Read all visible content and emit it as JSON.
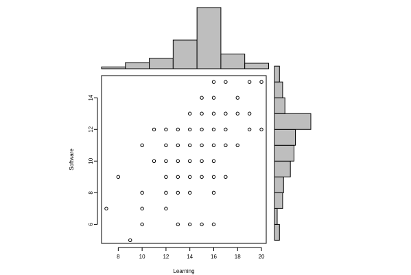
{
  "chart_data": [
    {
      "type": "scatter",
      "xlabel": "Learning",
      "ylabel": "Software",
      "xlim": [
        6.6,
        20.4
      ],
      "ylim": [
        4.8,
        15.4
      ],
      "x_ticks": [
        8,
        10,
        12,
        14,
        16,
        18,
        20
      ],
      "y_ticks": [
        6,
        8,
        10,
        12,
        14
      ],
      "x_tick_labels": [
        "8",
        "10",
        "12",
        "14",
        "16",
        "18",
        "20"
      ],
      "y_tick_labels": [
        "6",
        "8",
        "10",
        "12",
        "14"
      ],
      "marker": "open-circle",
      "points": [
        {
          "x": 16,
          "y": 15
        },
        {
          "x": 17,
          "y": 15
        },
        {
          "x": 19,
          "y": 15
        },
        {
          "x": 20,
          "y": 15
        },
        {
          "x": 15,
          "y": 14
        },
        {
          "x": 16,
          "y": 14
        },
        {
          "x": 18,
          "y": 14
        },
        {
          "x": 14,
          "y": 13
        },
        {
          "x": 15,
          "y": 13
        },
        {
          "x": 16,
          "y": 13
        },
        {
          "x": 17,
          "y": 13
        },
        {
          "x": 18,
          "y": 13
        },
        {
          "x": 19,
          "y": 13
        },
        {
          "x": 11,
          "y": 12
        },
        {
          "x": 12,
          "y": 12
        },
        {
          "x": 13,
          "y": 12
        },
        {
          "x": 14,
          "y": 12
        },
        {
          "x": 15,
          "y": 12
        },
        {
          "x": 16,
          "y": 12
        },
        {
          "x": 17,
          "y": 12
        },
        {
          "x": 19,
          "y": 12
        },
        {
          "x": 20,
          "y": 12
        },
        {
          "x": 10,
          "y": 11
        },
        {
          "x": 12,
          "y": 11
        },
        {
          "x": 13,
          "y": 11
        },
        {
          "x": 14,
          "y": 11
        },
        {
          "x": 15,
          "y": 11
        },
        {
          "x": 16,
          "y": 11
        },
        {
          "x": 17,
          "y": 11
        },
        {
          "x": 18,
          "y": 11
        },
        {
          "x": 11,
          "y": 10
        },
        {
          "x": 12,
          "y": 10
        },
        {
          "x": 13,
          "y": 10
        },
        {
          "x": 14,
          "y": 10
        },
        {
          "x": 15,
          "y": 10
        },
        {
          "x": 16,
          "y": 10
        },
        {
          "x": 8,
          "y": 9
        },
        {
          "x": 12,
          "y": 9
        },
        {
          "x": 13,
          "y": 9
        },
        {
          "x": 14,
          "y": 9
        },
        {
          "x": 15,
          "y": 9
        },
        {
          "x": 16,
          "y": 9
        },
        {
          "x": 17,
          "y": 9
        },
        {
          "x": 10,
          "y": 8
        },
        {
          "x": 12,
          "y": 8
        },
        {
          "x": 13,
          "y": 8
        },
        {
          "x": 14,
          "y": 8
        },
        {
          "x": 16,
          "y": 8
        },
        {
          "x": 7,
          "y": 7
        },
        {
          "x": 10,
          "y": 7
        },
        {
          "x": 12,
          "y": 7
        },
        {
          "x": 10,
          "y": 6
        },
        {
          "x": 13,
          "y": 6
        },
        {
          "x": 14,
          "y": 6
        },
        {
          "x": 15,
          "y": 6
        },
        {
          "x": 16,
          "y": 6
        },
        {
          "x": 9,
          "y": 5
        }
      ]
    },
    {
      "type": "bar",
      "orientation": "vertical",
      "variable": "Learning",
      "position": "top marginal histogram",
      "bins": [
        {
          "from": 6.6,
          "to": 8.6,
          "height": 0.3
        },
        {
          "from": 8.6,
          "to": 10.6,
          "height": 1.0
        },
        {
          "from": 10.6,
          "to": 12.6,
          "height": 1.7
        },
        {
          "from": 12.6,
          "to": 14.6,
          "height": 4.7
        },
        {
          "from": 14.6,
          "to": 16.6,
          "height": 10.0
        },
        {
          "from": 16.6,
          "to": 18.6,
          "height": 2.4
        },
        {
          "from": 18.6,
          "to": 20.6,
          "height": 0.9
        }
      ]
    },
    {
      "type": "bar",
      "orientation": "horizontal",
      "variable": "Software",
      "position": "right marginal histogram",
      "bins": [
        {
          "from": 5.0,
          "to": 6.0,
          "length": 1.1
        },
        {
          "from": 6.0,
          "to": 7.0,
          "length": 0.6
        },
        {
          "from": 7.0,
          "to": 8.0,
          "length": 1.8
        },
        {
          "from": 8.0,
          "to": 9.0,
          "length": 2.0
        },
        {
          "from": 9.0,
          "to": 10.0,
          "length": 3.5
        },
        {
          "from": 10.0,
          "to": 11.0,
          "length": 4.3
        },
        {
          "from": 11.0,
          "to": 12.0,
          "length": 4.6
        },
        {
          "from": 12.0,
          "to": 13.0,
          "length": 8.0
        },
        {
          "from": 13.0,
          "to": 14.0,
          "length": 2.3
        },
        {
          "from": 14.0,
          "to": 15.0,
          "length": 1.8
        },
        {
          "from": 15.0,
          "to": 16.0,
          "length": 1.1
        }
      ]
    }
  ]
}
